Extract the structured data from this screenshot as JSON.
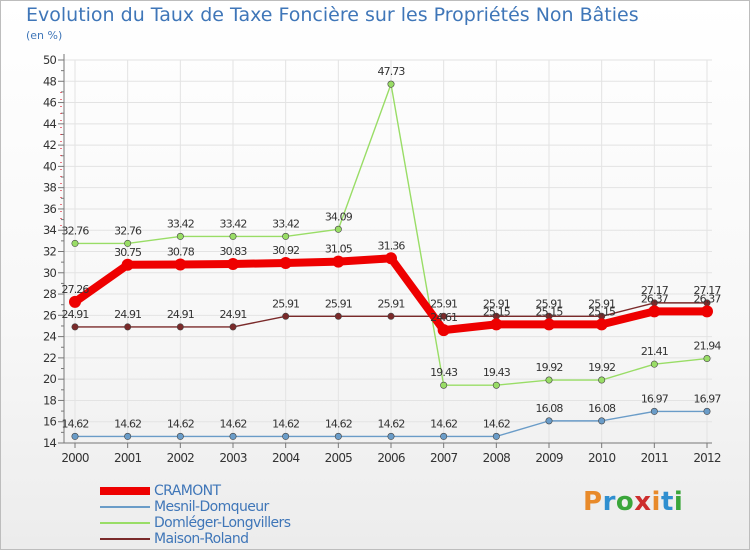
{
  "title": "Evolution du Taux de Taxe Foncière sur les Propriétés Non Bâties",
  "unit": "(en %)",
  "logo": {
    "text": "Proxiti"
  },
  "chart_data": {
    "type": "line",
    "title": "Evolution du Taux de Taxe Foncière sur les Propriétés Non Bâties",
    "ylabel": "(en %)",
    "ylim": [
      14,
      50
    ],
    "yticks": [
      14,
      16,
      18,
      20,
      22,
      24,
      26,
      28,
      30,
      32,
      34,
      36,
      38,
      40,
      42,
      44,
      46,
      48,
      50
    ],
    "categories": [
      "2000",
      "2001",
      "2002",
      "2003",
      "2004",
      "2005",
      "2006",
      "2007",
      "2008",
      "2009",
      "2010",
      "2011",
      "2012"
    ],
    "series": [
      {
        "name": "Maison-Roland",
        "color": "#7a2a2a",
        "values": [
          24.91,
          24.91,
          24.91,
          24.91,
          25.91,
          25.91,
          25.91,
          25.91,
          25.91,
          25.91,
          25.91,
          27.17,
          27.17
        ],
        "labels": [
          "24.91",
          "24.91",
          "24.91",
          "24.91",
          "25.91",
          "25.91",
          "25.91",
          "25.91",
          "25.91",
          "25.91",
          "25.91",
          "27.17",
          "27.17"
        ]
      },
      {
        "name": "Domléger-Longvillers",
        "color": "#99dd66",
        "values": [
          32.76,
          32.76,
          33.42,
          33.42,
          33.42,
          34.09,
          47.73,
          19.43,
          19.43,
          19.92,
          19.92,
          21.41,
          21.94
        ],
        "labels": [
          "32.76",
          "32.76",
          "33.42",
          "33.42",
          "33.42",
          "34.09",
          "47.73",
          "19.43",
          "19.43",
          "19.92",
          "19.92",
          "21.41",
          "21.94"
        ]
      },
      {
        "name": "Mesnil-Domqueur",
        "color": "#6a9cc8",
        "values": [
          14.62,
          14.62,
          14.62,
          14.62,
          14.62,
          14.62,
          14.62,
          14.62,
          14.62,
          16.08,
          16.08,
          16.97,
          16.97
        ],
        "labels": [
          "14.62",
          "14.62",
          "14.62",
          "14.62",
          "14.62",
          "14.62",
          "14.62",
          "14.62",
          "14.62",
          "16.08",
          "16.08",
          "16.97",
          "16.97"
        ]
      },
      {
        "name": "CRAMONT",
        "color": "#ee0000",
        "values": [
          27.26,
          30.75,
          30.78,
          30.83,
          30.92,
          31.05,
          31.36,
          24.61,
          25.15,
          25.15,
          25.15,
          26.37,
          26.37
        ],
        "labels": [
          "27.26",
          "30.75",
          "30.78",
          "30.83",
          "30.92",
          "31.05",
          "31.36",
          "24.61",
          "25.15",
          "25.15",
          "25.15",
          "26.37",
          "26.37"
        ]
      }
    ],
    "legend": [
      "CRAMONT",
      "Mesnil-Domqueur",
      "Domléger-Longvillers",
      "Maison-Roland"
    ]
  }
}
